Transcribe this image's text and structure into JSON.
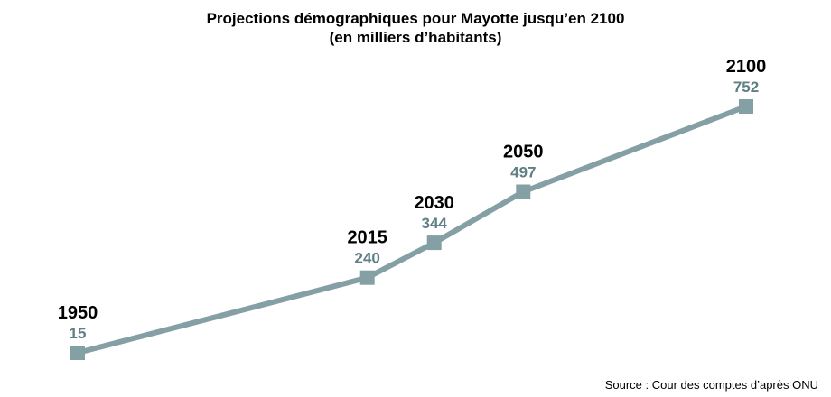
{
  "chart_data": {
    "type": "line",
    "title": "Projections démographiques pour Mayotte jusqu’en 2100",
    "subtitle": "(en milliers d’habitants)",
    "x": [
      1950,
      2015,
      2030,
      2050,
      2100
    ],
    "x_labels": [
      "1950",
      "2015",
      "2030",
      "2050",
      "2100"
    ],
    "values": [
      15,
      240,
      344,
      497,
      752
    ],
    "value_labels": [
      "15",
      "240",
      "344",
      "497",
      "752"
    ],
    "xlim": [
      1950,
      2100
    ],
    "ylim": [
      15,
      752
    ],
    "grid": false,
    "legend": "none",
    "colors": {
      "line": "#85a0a5",
      "value_text": "#5f7e85",
      "year_text": "#000000"
    },
    "source": "Source : Cour des comptes d’après ONU"
  }
}
